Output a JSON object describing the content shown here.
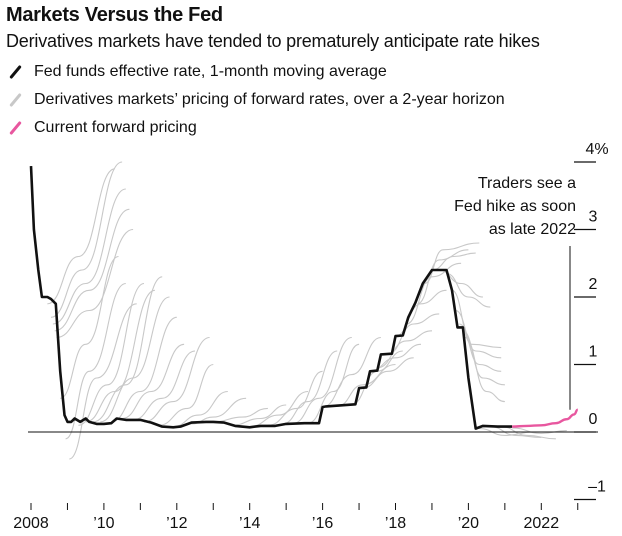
{
  "header": {
    "title": "Markets Versus the Fed",
    "subtitle": "Derivatives markets have tended to prematurely anticipate rate hikes"
  },
  "chart_data": {
    "type": "line",
    "title": "Markets Versus the Fed",
    "subtitle": "Derivatives markets have tended to prematurely anticipate rate hikes",
    "xlabel": "",
    "ylabel": "",
    "xlim": [
      2008,
      2023
    ],
    "ylim": [
      -1,
      4
    ],
    "x_ticks": [
      2008,
      2009,
      2010,
      2011,
      2012,
      2013,
      2014,
      2015,
      2016,
      2017,
      2018,
      2019,
      2020,
      2021,
      2022,
      2023
    ],
    "x_tick_labels": [
      {
        "year": 2008,
        "label": "2008"
      },
      {
        "year": 2010,
        "label": "’10"
      },
      {
        "year": 2012,
        "label": "’12"
      },
      {
        "year": 2014,
        "label": "’14"
      },
      {
        "year": 2016,
        "label": "’16"
      },
      {
        "year": 2018,
        "label": "’18"
      },
      {
        "year": 2020,
        "label": "’20"
      },
      {
        "year": 2022,
        "label": "2022"
      }
    ],
    "y_ticks": [
      {
        "value": 4,
        "label": "4%"
      },
      {
        "value": 3,
        "label": "3"
      },
      {
        "value": 2,
        "label": "2"
      },
      {
        "value": 1,
        "label": "1"
      },
      {
        "value": 0,
        "label": "0"
      },
      {
        "value": -1,
        "label": "–1"
      }
    ],
    "legend": [
      {
        "label": "Fed funds effective rate, 1-month moving average",
        "color": "#111111"
      },
      {
        "label": "Derivatives markets’ pricing of forward rates, over a 2-year horizon",
        "color": "#c8c8c8"
      },
      {
        "label": "Current forward pricing",
        "color": "#e8579f"
      }
    ],
    "legend_placement": "top-left",
    "annotation": [
      "Traders see a",
      "Fed hike as soon",
      "as late 2022"
    ],
    "series": [
      {
        "name": "Fed funds effective rate, 1-month moving average",
        "color": "#111111",
        "points": [
          [
            2008.0,
            3.94
          ],
          [
            2008.08,
            3.0
          ],
          [
            2008.2,
            2.4
          ],
          [
            2008.3,
            2.0
          ],
          [
            2008.45,
            2.0
          ],
          [
            2008.55,
            1.97
          ],
          [
            2008.68,
            1.9
          ],
          [
            2008.8,
            0.9
          ],
          [
            2008.92,
            0.25
          ],
          [
            2009.0,
            0.15
          ],
          [
            2009.1,
            0.15
          ],
          [
            2009.2,
            0.2
          ],
          [
            2009.35,
            0.15
          ],
          [
            2009.5,
            0.2
          ],
          [
            2009.6,
            0.15
          ],
          [
            2009.8,
            0.12
          ],
          [
            2010.0,
            0.12
          ],
          [
            2010.2,
            0.13
          ],
          [
            2010.35,
            0.2
          ],
          [
            2010.6,
            0.18
          ],
          [
            2011.0,
            0.18
          ],
          [
            2011.3,
            0.14
          ],
          [
            2011.6,
            0.08
          ],
          [
            2011.9,
            0.07
          ],
          [
            2012.1,
            0.08
          ],
          [
            2012.4,
            0.14
          ],
          [
            2012.8,
            0.15
          ],
          [
            2013.0,
            0.15
          ],
          [
            2013.3,
            0.14
          ],
          [
            2013.6,
            0.09
          ],
          [
            2014.0,
            0.07
          ],
          [
            2014.3,
            0.09
          ],
          [
            2014.7,
            0.09
          ],
          [
            2015.0,
            0.12
          ],
          [
            2015.5,
            0.13
          ],
          [
            2015.9,
            0.13
          ],
          [
            2016.0,
            0.37
          ],
          [
            2016.1,
            0.38
          ],
          [
            2016.9,
            0.41
          ],
          [
            2017.0,
            0.65
          ],
          [
            2017.2,
            0.66
          ],
          [
            2017.3,
            0.9
          ],
          [
            2017.5,
            0.91
          ],
          [
            2017.6,
            1.15
          ],
          [
            2017.9,
            1.16
          ],
          [
            2018.0,
            1.42
          ],
          [
            2018.2,
            1.43
          ],
          [
            2018.35,
            1.7
          ],
          [
            2018.55,
            1.92
          ],
          [
            2018.75,
            2.2
          ],
          [
            2019.0,
            2.4
          ],
          [
            2019.4,
            2.4
          ],
          [
            2019.55,
            2.1
          ],
          [
            2019.7,
            1.55
          ],
          [
            2019.85,
            1.55
          ],
          [
            2020.0,
            0.8
          ],
          [
            2020.2,
            0.05
          ],
          [
            2020.4,
            0.09
          ],
          [
            2020.8,
            0.08
          ],
          [
            2021.2,
            0.08
          ]
        ]
      },
      {
        "name": "Current forward pricing",
        "color": "#e8579f",
        "points": [
          [
            2021.2,
            0.08
          ],
          [
            2021.6,
            0.09
          ],
          [
            2022.0,
            0.1
          ],
          [
            2022.4,
            0.13
          ],
          [
            2022.7,
            0.19
          ],
          [
            2022.9,
            0.26
          ],
          [
            2023.0,
            0.33
          ]
        ]
      },
      {
        "name": "Derivatives markets’ pricing of forward rates, over a 2-year horizon",
        "color": "#c8c8c8",
        "curves": [
          [
            [
              2008.45,
              1.9
            ],
            [
              2009.3,
              2.6
            ],
            [
              2010.3,
              3.9
            ]
          ],
          [
            [
              2008.55,
              1.7
            ],
            [
              2009.4,
              2.4
            ],
            [
              2010.5,
              4.0
            ]
          ],
          [
            [
              2008.6,
              1.6
            ],
            [
              2009.5,
              2.2
            ],
            [
              2010.6,
              3.6
            ]
          ],
          [
            [
              2008.65,
              1.5
            ],
            [
              2009.6,
              2.1
            ],
            [
              2010.7,
              3.3
            ]
          ],
          [
            [
              2008.7,
              1.4
            ],
            [
              2009.6,
              1.8
            ],
            [
              2010.8,
              3.0
            ]
          ],
          [
            [
              2008.8,
              0.5
            ],
            [
              2009.5,
              1.3
            ],
            [
              2010.4,
              2.6
            ]
          ],
          [
            [
              2008.95,
              -0.1
            ],
            [
              2009.6,
              0.9
            ],
            [
              2010.6,
              2.2
            ]
          ],
          [
            [
              2009.05,
              -0.4
            ],
            [
              2009.8,
              0.8
            ],
            [
              2010.9,
              1.9
            ]
          ],
          [
            [
              2009.3,
              0.1
            ],
            [
              2010.1,
              0.7
            ],
            [
              2011.1,
              2.2
            ]
          ],
          [
            [
              2009.5,
              0.15
            ],
            [
              2010.3,
              0.6
            ],
            [
              2011.4,
              2.1
            ]
          ],
          [
            [
              2009.7,
              0.15
            ],
            [
              2010.6,
              0.7
            ],
            [
              2011.6,
              2.3
            ]
          ],
          [
            [
              2009.9,
              0.15
            ],
            [
              2010.8,
              0.8
            ],
            [
              2011.8,
              2.0
            ]
          ],
          [
            [
              2010.2,
              0.15
            ],
            [
              2011.0,
              0.6
            ],
            [
              2012.0,
              1.7
            ]
          ],
          [
            [
              2010.5,
              0.2
            ],
            [
              2011.3,
              0.6
            ],
            [
              2012.2,
              1.3
            ]
          ],
          [
            [
              2010.8,
              0.18
            ],
            [
              2011.6,
              0.5
            ],
            [
              2012.5,
              1.2
            ]
          ],
          [
            [
              2011.1,
              0.15
            ],
            [
              2011.9,
              0.45
            ],
            [
              2012.9,
              1.4
            ]
          ],
          [
            [
              2011.5,
              0.1
            ],
            [
              2012.3,
              0.35
            ],
            [
              2013.0,
              1.0
            ]
          ],
          [
            [
              2011.9,
              0.08
            ],
            [
              2012.6,
              0.25
            ],
            [
              2013.4,
              0.6
            ]
          ],
          [
            [
              2012.4,
              0.12
            ],
            [
              2013.0,
              0.22
            ],
            [
              2013.9,
              0.5
            ]
          ],
          [
            [
              2013.0,
              0.15
            ],
            [
              2013.8,
              0.22
            ],
            [
              2014.5,
              0.35
            ]
          ],
          [
            [
              2013.5,
              0.1
            ],
            [
              2014.3,
              0.2
            ],
            [
              2015.0,
              0.4
            ]
          ],
          [
            [
              2014.0,
              0.08
            ],
            [
              2014.8,
              0.25
            ],
            [
              2015.6,
              0.6
            ]
          ],
          [
            [
              2014.5,
              0.1
            ],
            [
              2015.3,
              0.35
            ],
            [
              2016.0,
              0.9
            ]
          ],
          [
            [
              2014.9,
              0.12
            ],
            [
              2015.6,
              0.45
            ],
            [
              2016.4,
              1.2
            ]
          ],
          [
            [
              2015.2,
              0.13
            ],
            [
              2015.9,
              0.5
            ],
            [
              2016.8,
              1.4
            ]
          ],
          [
            [
              2015.6,
              0.13
            ],
            [
              2016.3,
              0.6
            ],
            [
              2017.0,
              1.3
            ]
          ],
          [
            [
              2016.0,
              0.37
            ],
            [
              2016.8,
              0.85
            ],
            [
              2017.6,
              1.4
            ]
          ],
          [
            [
              2016.4,
              0.38
            ],
            [
              2017.1,
              0.7
            ],
            [
              2018.0,
              1.0
            ]
          ],
          [
            [
              2016.8,
              0.41
            ],
            [
              2017.5,
              0.9
            ],
            [
              2018.2,
              1.2
            ]
          ],
          [
            [
              2017.1,
              0.65
            ],
            [
              2017.8,
              0.9
            ],
            [
              2018.5,
              1.1
            ]
          ],
          [
            [
              2017.3,
              0.9
            ],
            [
              2018.0,
              1.1
            ],
            [
              2018.7,
              1.3
            ]
          ],
          [
            [
              2017.5,
              0.95
            ],
            [
              2018.3,
              1.35
            ],
            [
              2019.0,
              1.5
            ]
          ],
          [
            [
              2017.8,
              1.16
            ],
            [
              2018.5,
              1.6
            ],
            [
              2019.2,
              1.75
            ]
          ],
          [
            [
              2018.0,
              1.42
            ],
            [
              2018.7,
              1.9
            ],
            [
              2019.4,
              2.1
            ]
          ],
          [
            [
              2018.3,
              1.6
            ],
            [
              2019.0,
              2.3
            ],
            [
              2019.8,
              2.5
            ]
          ],
          [
            [
              2018.6,
              1.9
            ],
            [
              2019.2,
              2.55
            ],
            [
              2020.0,
              2.7
            ]
          ],
          [
            [
              2018.8,
              2.2
            ],
            [
              2019.3,
              2.7
            ],
            [
              2020.3,
              2.8
            ]
          ],
          [
            [
              2019.0,
              2.4
            ],
            [
              2019.6,
              2.6
            ],
            [
              2020.2,
              2.65
            ]
          ],
          [
            [
              2019.2,
              2.4
            ],
            [
              2019.8,
              2.2
            ],
            [
              2020.4,
              2.0
            ]
          ],
          [
            [
              2019.4,
              2.35
            ],
            [
              2020.0,
              2.0
            ],
            [
              2020.6,
              1.85
            ]
          ],
          [
            [
              2019.55,
              2.1
            ],
            [
              2020.1,
              1.3
            ],
            [
              2020.9,
              1.25
            ]
          ],
          [
            [
              2019.65,
              1.8
            ],
            [
              2020.2,
              1.2
            ],
            [
              2020.9,
              1.1
            ]
          ],
          [
            [
              2019.75,
              1.6
            ],
            [
              2020.3,
              1.0
            ],
            [
              2020.9,
              0.9
            ]
          ],
          [
            [
              2019.85,
              1.5
            ],
            [
              2020.4,
              0.8
            ],
            [
              2021.0,
              0.7
            ]
          ],
          [
            [
              2019.9,
              1.4
            ],
            [
              2020.5,
              0.6
            ],
            [
              2021.0,
              0.45
            ]
          ],
          [
            [
              2020.3,
              0.05
            ],
            [
              2021.0,
              -0.05
            ],
            [
              2021.8,
              0.0
            ]
          ],
          [
            [
              2020.6,
              0.08
            ],
            [
              2021.3,
              -0.05
            ],
            [
              2022.0,
              -0.08
            ]
          ],
          [
            [
              2020.9,
              0.08
            ],
            [
              2021.6,
              -0.05
            ],
            [
              2022.4,
              -0.1
            ]
          ],
          [
            [
              2021.2,
              0.06
            ],
            [
              2022.0,
              -0.02
            ],
            [
              2022.7,
              0.02
            ]
          ]
        ]
      }
    ]
  }
}
